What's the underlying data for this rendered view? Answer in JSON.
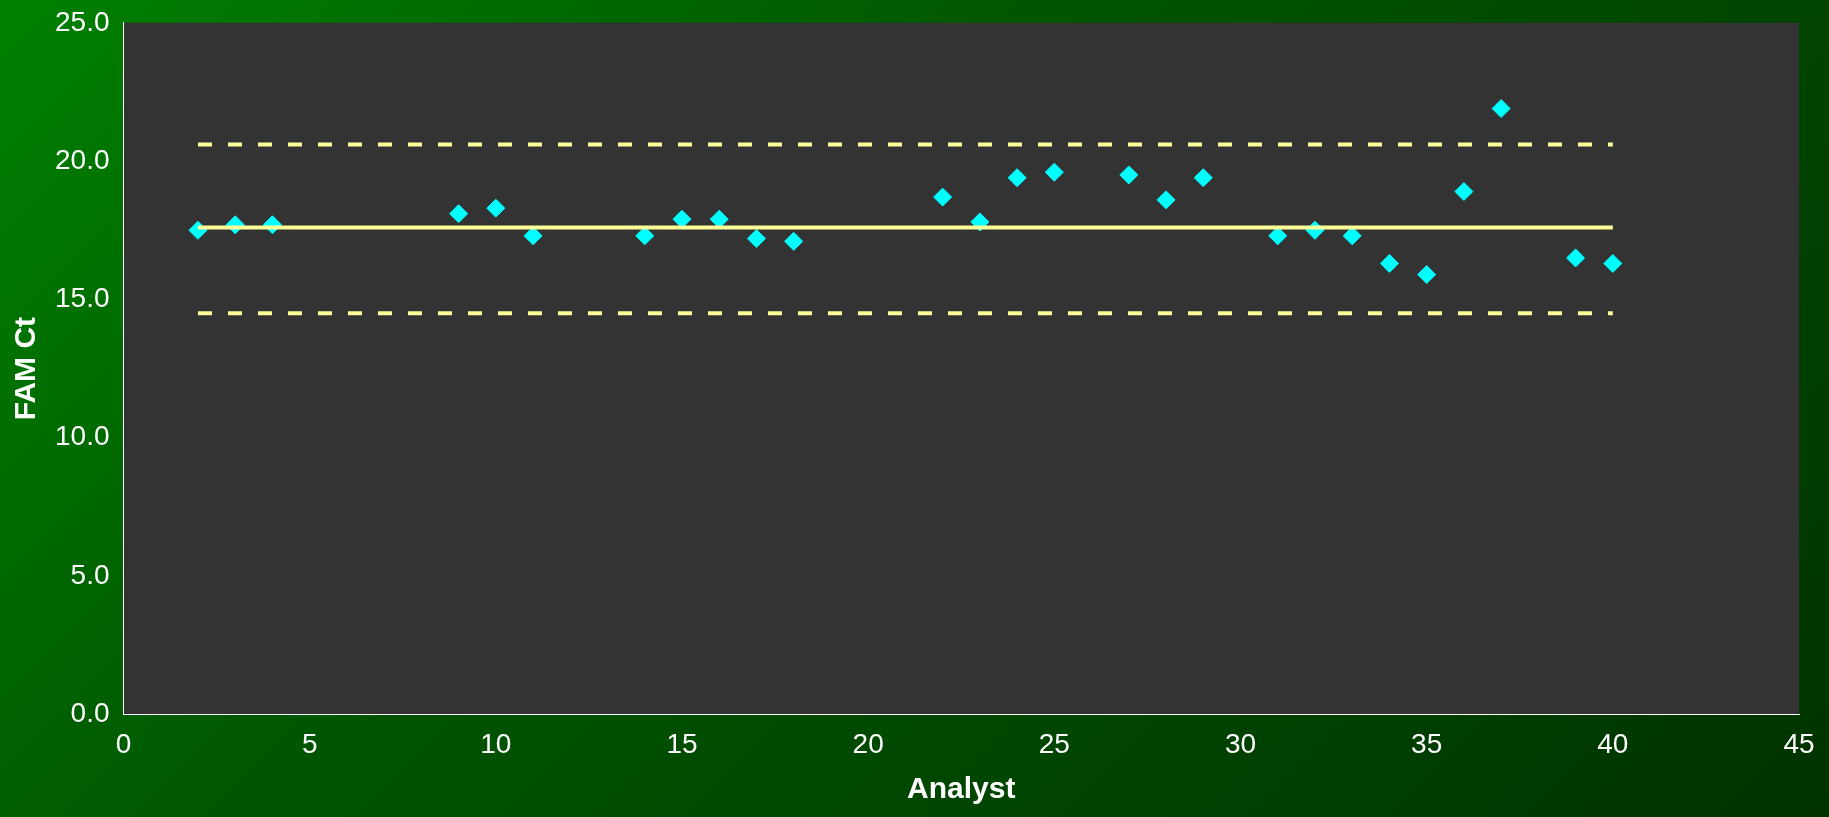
{
  "chart_data": {
    "type": "scatter",
    "xlabel": "Analyst",
    "ylabel": "FAM Ct",
    "xlim": [
      0,
      45
    ],
    "xticks": [
      0,
      5,
      10,
      15,
      20,
      25,
      30,
      35,
      40,
      45
    ],
    "ylim": [
      0,
      25
    ],
    "yticks": [
      {
        "value": 0,
        "label": "0.0"
      },
      {
        "value": 5,
        "label": "5.0"
      },
      {
        "value": 10,
        "label": "10.0"
      },
      {
        "value": 15,
        "label": "15.0"
      },
      {
        "value": 20,
        "label": "20.0"
      },
      {
        "value": 25,
        "label": "25.0"
      }
    ],
    "grid": false,
    "legend": false,
    "series": [
      {
        "marker": "diamond",
        "color": "#00ffff",
        "x": [
          2,
          3,
          4,
          9,
          10,
          11,
          14,
          15,
          16,
          17,
          18,
          22,
          23,
          24,
          25,
          27,
          28,
          29,
          31,
          32,
          33,
          34,
          35,
          36,
          37,
          39,
          40
        ],
        "values": [
          17.5,
          17.7,
          17.7,
          18.1,
          18.3,
          17.3,
          17.3,
          17.9,
          17.9,
          17.2,
          17.1,
          18.7,
          17.8,
          19.4,
          19.6,
          19.5,
          18.6,
          19.4,
          17.3,
          17.5,
          17.3,
          16.3,
          15.9,
          18.9,
          21.9,
          16.5,
          16.3
        ]
      },
      {
        "type": "line",
        "color": "#ffff99",
        "line_style": "solid",
        "x": [
          2,
          40
        ],
        "values": [
          17.6,
          17.6
        ]
      },
      {
        "type": "line",
        "color": "#ffff99",
        "line_style": "dashed",
        "x": [
          2,
          40
        ],
        "values": [
          20.6,
          20.6
        ]
      },
      {
        "type": "line",
        "color": "#ffff99",
        "line_style": "dashed",
        "x": [
          2,
          40
        ],
        "values": [
          14.5,
          14.5
        ]
      }
    ]
  }
}
